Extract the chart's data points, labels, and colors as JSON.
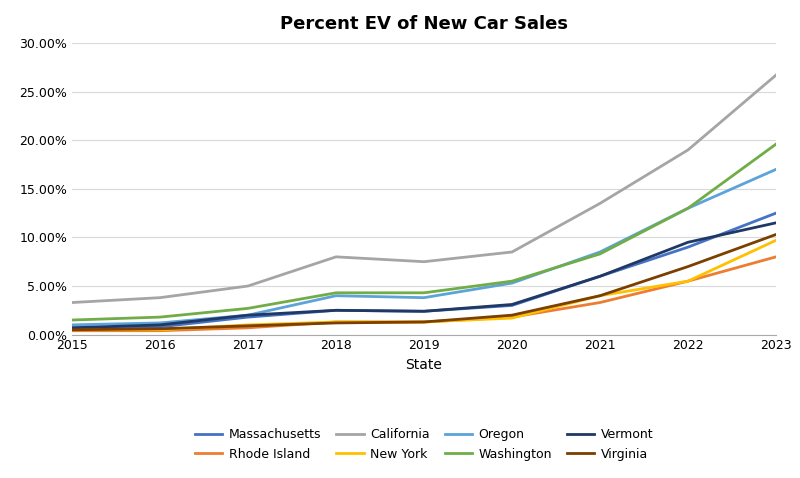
{
  "title": "Percent EV of New Car Sales",
  "xlabel": "State",
  "years": [
    2015,
    2016,
    2017,
    2018,
    2019,
    2020,
    2021,
    2022,
    2023
  ],
  "series": {
    "Massachusetts": {
      "values": [
        0.007,
        0.008,
        0.018,
        0.025,
        0.024,
        0.03,
        0.06,
        0.09,
        0.125
      ],
      "color": "#4472C4",
      "linewidth": 2.0
    },
    "Rhode Island": {
      "values": [
        0.004,
        0.004,
        0.007,
        0.013,
        0.013,
        0.018,
        0.033,
        0.055,
        0.08
      ],
      "color": "#ED7D31",
      "linewidth": 2.0
    },
    "California": {
      "values": [
        0.033,
        0.038,
        0.05,
        0.08,
        0.075,
        0.085,
        0.135,
        0.19,
        0.267
      ],
      "color": "#A5A5A5",
      "linewidth": 2.0
    },
    "New York": {
      "values": [
        0.005,
        0.005,
        0.01,
        0.013,
        0.013,
        0.017,
        0.04,
        0.055,
        0.097
      ],
      "color": "#FFC000",
      "linewidth": 2.0
    },
    "Oregon": {
      "values": [
        0.01,
        0.012,
        0.02,
        0.04,
        0.038,
        0.053,
        0.085,
        0.13,
        0.17
      ],
      "color": "#5BA3D9",
      "linewidth": 2.0
    },
    "Washington": {
      "values": [
        0.015,
        0.018,
        0.027,
        0.043,
        0.043,
        0.055,
        0.083,
        0.13,
        0.196
      ],
      "color": "#70AD47",
      "linewidth": 2.0
    },
    "Vermont": {
      "values": [
        0.007,
        0.01,
        0.02,
        0.025,
        0.024,
        0.031,
        0.06,
        0.095,
        0.115
      ],
      "color": "#203864",
      "linewidth": 2.0
    },
    "Virginia": {
      "values": [
        0.005,
        0.006,
        0.009,
        0.012,
        0.013,
        0.02,
        0.04,
        0.07,
        0.103
      ],
      "color": "#7B3F00",
      "linewidth": 2.0
    }
  },
  "ylim": [
    0.0,
    0.3
  ],
  "yticks": [
    0.0,
    0.05,
    0.1,
    0.15,
    0.2,
    0.25,
    0.3
  ],
  "legend_order": [
    "Massachusetts",
    "Rhode Island",
    "California",
    "New York",
    "Oregon",
    "Washington",
    "Vermont",
    "Virginia"
  ],
  "background_color": "#FFFFFF",
  "grid_color": "#D9D9D9",
  "title_fontsize": 13,
  "axis_fontsize": 10,
  "tick_fontsize": 9,
  "legend_fontsize": 9
}
